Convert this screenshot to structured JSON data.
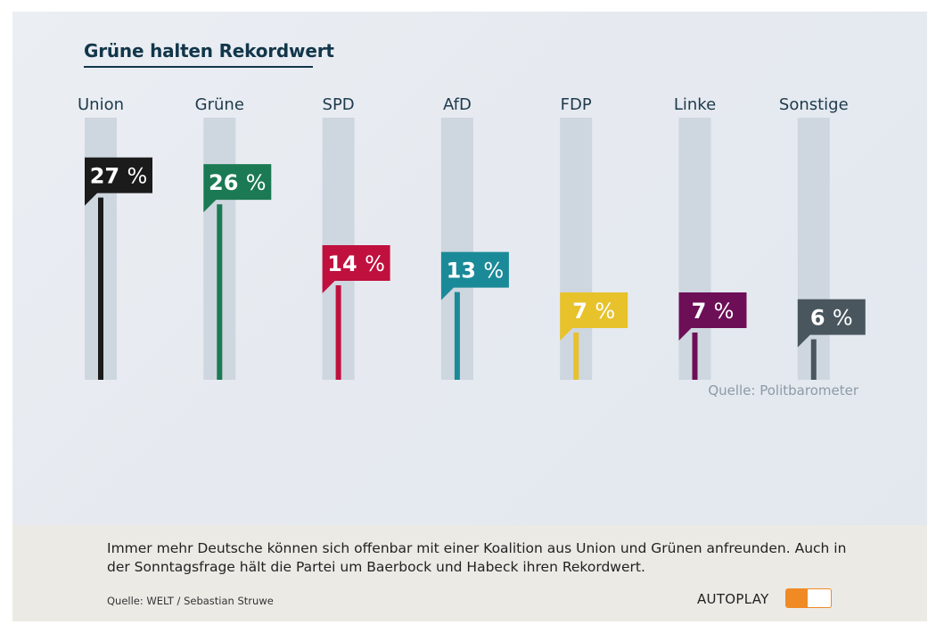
{
  "title": "Grüne halten Rekordwert",
  "chart_data": {
    "type": "bar",
    "categories": [
      "Union",
      "Grüne",
      "SPD",
      "AfD",
      "FDP",
      "Linke",
      "Sonstige"
    ],
    "values": [
      27,
      26,
      14,
      13,
      7,
      7,
      6
    ],
    "value_labels": [
      "27",
      "26",
      "14",
      "13",
      "7",
      "7",
      "6"
    ],
    "unit": "%",
    "colors": [
      "#1b1b1b",
      "#1b7a53",
      "#c0103e",
      "#1a8a98",
      "#e7c22b",
      "#6d0f57",
      "#49565e"
    ],
    "track_color": "#ced6df",
    "ylim": [
      0,
      30
    ],
    "title": "Grüne halten Rekordwert",
    "xlabel": "",
    "ylabel": "",
    "source": "Quelle: Politbarometer"
  },
  "caption": {
    "text": "Immer mehr Deutsche können sich offenbar mit einer Koalition aus Union und Grünen anfreunden. Auch in der Sonntagsfrage hält die Partei um Baerbock und Habeck ihren Rekordwert.",
    "source": "Quelle: WELT / Sebastian Struwe"
  },
  "autoplay": {
    "label": "AUTOPLAY",
    "enabled": true,
    "accent": "#f08a24"
  }
}
